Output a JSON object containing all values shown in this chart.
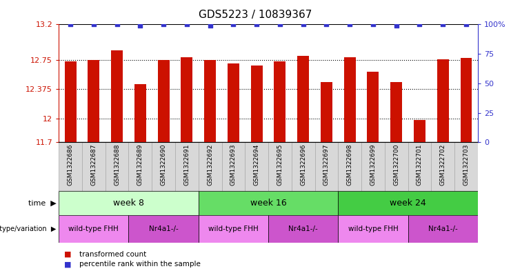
{
  "title": "GDS5223 / 10839367",
  "samples": [
    "GSM1322686",
    "GSM1322687",
    "GSM1322688",
    "GSM1322689",
    "GSM1322690",
    "GSM1322691",
    "GSM1322692",
    "GSM1322693",
    "GSM1322694",
    "GSM1322695",
    "GSM1322696",
    "GSM1322697",
    "GSM1322698",
    "GSM1322699",
    "GSM1322700",
    "GSM1322701",
    "GSM1322702",
    "GSM1322703"
  ],
  "bar_values": [
    12.73,
    12.75,
    12.87,
    12.44,
    12.75,
    12.78,
    12.75,
    12.7,
    12.68,
    12.73,
    12.8,
    12.47,
    12.78,
    12.6,
    12.47,
    11.98,
    12.76,
    12.77
  ],
  "percentile_values": [
    100,
    100,
    100,
    99,
    100,
    100,
    99,
    100,
    100,
    100,
    100,
    100,
    100,
    100,
    99,
    100,
    100,
    100
  ],
  "bar_color": "#cc1100",
  "percentile_color": "#3333cc",
  "y_min": 11.7,
  "y_max": 13.2,
  "y_ticks": [
    11.7,
    12.0,
    12.375,
    12.75,
    13.2
  ],
  "y_tick_labels": [
    "11.7",
    "12",
    "12.375",
    "12.75",
    "13.2"
  ],
  "right_y_ticks": [
    0,
    25,
    50,
    75,
    100
  ],
  "right_y_tick_labels": [
    "0",
    "25",
    "50",
    "75",
    "100%"
  ],
  "dotted_lines": [
    12.0,
    12.375,
    12.75
  ],
  "time_groups": [
    {
      "label": "week 8",
      "start": 0,
      "end": 6,
      "color": "#ccffcc"
    },
    {
      "label": "week 16",
      "start": 6,
      "end": 12,
      "color": "#66dd66"
    },
    {
      "label": "week 24",
      "start": 12,
      "end": 18,
      "color": "#44cc44"
    }
  ],
  "genotype_groups": [
    {
      "label": "wild-type FHH",
      "start": 0,
      "end": 3,
      "color": "#ee88ee"
    },
    {
      "label": "Nr4a1-/-",
      "start": 3,
      "end": 6,
      "color": "#cc55cc"
    },
    {
      "label": "wild-type FHH",
      "start": 6,
      "end": 9,
      "color": "#ee88ee"
    },
    {
      "label": "Nr4a1-/-",
      "start": 9,
      "end": 12,
      "color": "#cc55cc"
    },
    {
      "label": "wild-type FHH",
      "start": 12,
      "end": 15,
      "color": "#ee88ee"
    },
    {
      "label": "Nr4a1-/-",
      "start": 15,
      "end": 18,
      "color": "#cc55cc"
    }
  ],
  "legend_tc": "transformed count",
  "legend_pr": "percentile rank within the sample",
  "cell_color": "#d8d8d8",
  "cell_edge_color": "#aaaaaa"
}
